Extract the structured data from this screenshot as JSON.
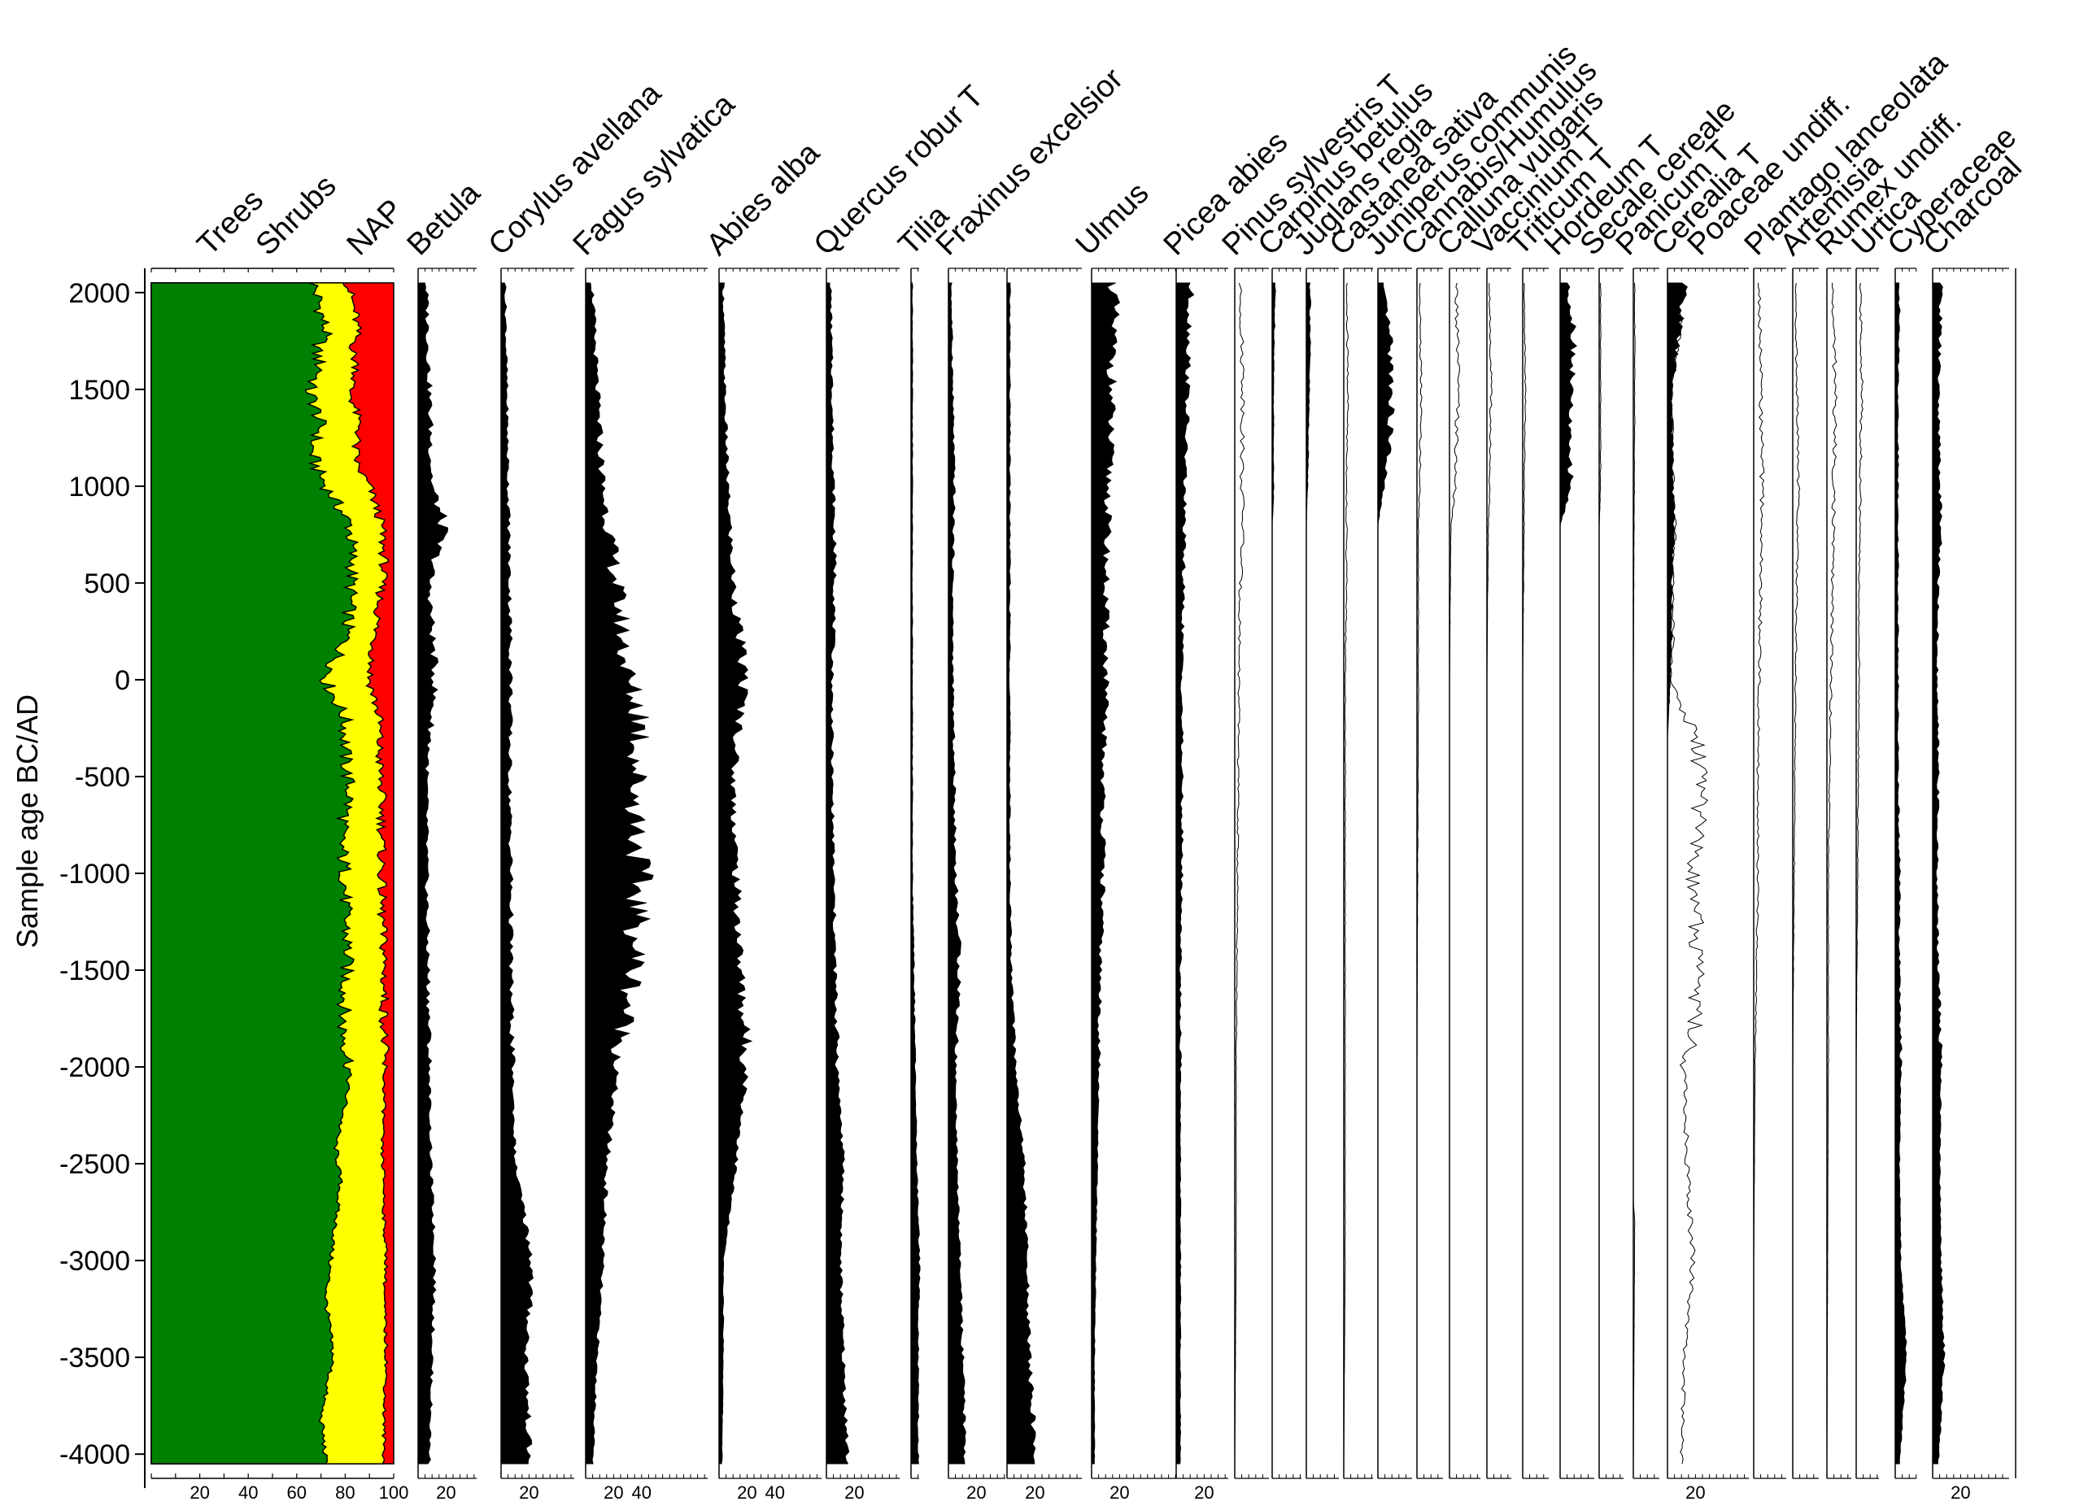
{
  "chart_data": {
    "type": "area",
    "ylabel": "Sample age BC/AD",
    "ylim": [
      -4100,
      2100
    ],
    "yticks": [
      "2000",
      "1500",
      "1000",
      "500",
      "0",
      "-500",
      "-1000",
      "-1500",
      "-2000",
      "-2500",
      "-3000",
      "-3500",
      "-4000"
    ],
    "ytick_values": [
      2000,
      1500,
      1000,
      500,
      0,
      -500,
      -1000,
      -1500,
      -2000,
      -2500,
      -3000,
      -3500,
      -4000
    ],
    "colors": {
      "trees": "#008000",
      "shrubs": "#ffff00",
      "nap": "#ff0000",
      "silhouette": "#000000",
      "line": "#000000"
    },
    "stacked_panel": {
      "series_names": [
        "Trees",
        "Shrubs",
        "NAP"
      ],
      "xlim": [
        0,
        100
      ],
      "xticks": [
        "20",
        "40",
        "60",
        "80",
        "100"
      ],
      "profile_age": [
        -4050,
        -3800,
        -3500,
        -3200,
        -3000,
        -2800,
        -2600,
        -2400,
        -2200,
        -2000,
        -1800,
        -1600,
        -1400,
        -1200,
        -1000,
        -800,
        -600,
        -400,
        -200,
        0,
        200,
        400,
        600,
        800,
        1000,
        1100,
        1200,
        1300,
        1400,
        1500,
        1600,
        1700,
        1800,
        1900,
        2000,
        2100
      ],
      "trees_cumulative": [
        72,
        70,
        75,
        72,
        74,
        76,
        78,
        76,
        80,
        82,
        79,
        80,
        81,
        80,
        80,
        78,
        82,
        80,
        80,
        72,
        80,
        82,
        83,
        82,
        72,
        68,
        66,
        70,
        68,
        65,
        70,
        68,
        72,
        70,
        68,
        66
      ],
      "shrubs_cumulative": [
        96,
        96,
        97,
        96,
        97,
        96,
        96,
        95,
        96,
        96,
        96,
        96,
        96,
        95,
        95,
        95,
        95,
        94,
        94,
        90,
        92,
        94,
        96,
        95,
        90,
        85,
        84,
        86,
        84,
        82,
        85,
        83,
        85,
        84,
        82,
        80
      ]
    },
    "taxa": [
      {
        "name": "Betula",
        "xticks": [
          "20"
        ],
        "max": 30,
        "kind": "silhouette",
        "profile_age": [
          -4050,
          -3500,
          -3000,
          -2500,
          -2000,
          -1500,
          -1000,
          -500,
          0,
          500,
          800,
          1000,
          1500,
          2000,
          2100
        ],
        "profile_val": [
          8,
          10,
          12,
          9,
          8,
          7,
          6,
          6,
          12,
          8,
          18,
          10,
          8,
          6,
          5
        ]
      },
      {
        "name": "Corylus avellana",
        "xticks": [
          "20"
        ],
        "max": 30,
        "kind": "silhouette",
        "profile_age": [
          -4050,
          -3500,
          -3000,
          -2500,
          -2000,
          -1500,
          -1000,
          -500,
          0,
          500,
          1000,
          1500,
          2000,
          2100
        ],
        "profile_val": [
          20,
          18,
          22,
          10,
          8,
          7,
          7,
          6,
          7,
          6,
          5,
          4,
          3,
          3
        ]
      },
      {
        "name": "Fagus sylvatica",
        "xticks": [
          "20",
          "40"
        ],
        "max": 50,
        "kind": "silhouette",
        "profile_age": [
          -4050,
          -3500,
          -3000,
          -2500,
          -2000,
          -1500,
          -1000,
          -500,
          -200,
          0,
          500,
          1000,
          1500,
          2000,
          2100
        ],
        "profile_val": [
          5,
          8,
          12,
          15,
          22,
          35,
          38,
          36,
          40,
          30,
          22,
          12,
          8,
          5,
          4
        ]
      },
      {
        "name": "Abies alba",
        "xticks": [
          "20",
          "40"
        ],
        "max": 40,
        "kind": "silhouette",
        "profile_age": [
          -4050,
          -3500,
          -3000,
          -2500,
          -2000,
          -1500,
          -1000,
          -500,
          0,
          500,
          1000,
          1500,
          2000,
          2100
        ],
        "profile_val": [
          2,
          3,
          3,
          12,
          20,
          15,
          12,
          10,
          18,
          10,
          6,
          4,
          3,
          3
        ]
      },
      {
        "name": "Quercus robur T",
        "xticks": [
          "20"
        ],
        "max": 30,
        "kind": "silhouette",
        "profile_age": [
          -4050,
          -3500,
          -3000,
          -2500,
          -2000,
          -1500,
          -1000,
          -500,
          0,
          500,
          1000,
          1500,
          2000,
          2100
        ],
        "profile_val": [
          15,
          12,
          10,
          12,
          8,
          6,
          5,
          4,
          4,
          6,
          5,
          4,
          3,
          3
        ]
      },
      {
        "name": "Tilia",
        "xticks": [],
        "max": 20,
        "kind": "silhouette",
        "profile_age": [
          -4050,
          -3500,
          -3000,
          -2500,
          -2000,
          -1500,
          -1000,
          -500,
          0,
          500,
          1000,
          1500,
          2000,
          2100
        ],
        "profile_val": [
          5,
          5,
          6,
          4,
          3,
          2,
          1,
          1,
          1,
          1,
          1,
          1,
          1,
          1
        ]
      },
      {
        "name": "Fraxinus excelsior",
        "xticks": [
          "20"
        ],
        "max": 30,
        "kind": "silhouette",
        "profile_age": [
          -4050,
          -3500,
          -3000,
          -2500,
          -2000,
          -1500,
          -1000,
          -500,
          0,
          500,
          1000,
          1500,
          2000,
          2100
        ],
        "profile_val": [
          12,
          10,
          8,
          6,
          5,
          8,
          5,
          4,
          3,
          3,
          4,
          3,
          2,
          2
        ]
      },
      {
        "name": "Ulmus",
        "xticks": [
          "20"
        ],
        "max": 30,
        "kind": "silhouette",
        "profile_age": [
          -4050,
          -3500,
          -3000,
          -2500,
          -2000,
          -1500,
          -1000,
          -500,
          0,
          500,
          1000,
          1500,
          2000,
          2100
        ],
        "profile_val": [
          20,
          16,
          14,
          12,
          6,
          3,
          2,
          2,
          2,
          2,
          2,
          2,
          2,
          2
        ]
      },
      {
        "name": "Picea abies",
        "xticks": [
          "20"
        ],
        "max": 40,
        "kind": "silhouette",
        "profile_age": [
          -4050,
          -3500,
          -3000,
          -2500,
          -2000,
          -1500,
          -1000,
          -500,
          0,
          500,
          1000,
          1500,
          2000,
          2100
        ],
        "profile_val": [
          2,
          2,
          3,
          4,
          5,
          6,
          8,
          8,
          10,
          10,
          12,
          14,
          16,
          14
        ]
      },
      {
        "name": "Pinus sylvestris T",
        "xticks": [
          "20"
        ],
        "max": 20,
        "kind": "silhouette",
        "profile_age": [
          -4050,
          -3500,
          -3000,
          -2500,
          -2000,
          -1500,
          -1000,
          -500,
          0,
          500,
          1000,
          1500,
          2000,
          2100
        ],
        "profile_val": [
          3,
          3,
          3,
          3,
          3,
          3,
          4,
          4,
          4,
          5,
          6,
          8,
          10,
          10
        ]
      },
      {
        "name": "Carpinus betulus",
        "xticks": [],
        "max": 20,
        "kind": "line",
        "profile_age": [
          -4050,
          -3000,
          -2000,
          -1000,
          0,
          500,
          800,
          1000,
          1500,
          2000,
          2100
        ],
        "profile_val": [
          0,
          1,
          1,
          2,
          3,
          4,
          6,
          5,
          6,
          4,
          3
        ]
      },
      {
        "name": "Juglans regia",
        "xticks": [],
        "max": 20,
        "kind": "silhouette",
        "profile_age": [
          -4050,
          800,
          900,
          1500,
          2000,
          2100
        ],
        "profile_val": [
          0,
          0,
          1,
          1,
          2,
          2
        ]
      },
      {
        "name": "Castanea sativa",
        "xticks": [],
        "max": 20,
        "kind": "silhouette",
        "profile_age": [
          -4050,
          800,
          1000,
          1500,
          2000,
          2100
        ],
        "profile_val": [
          0,
          0,
          1,
          2,
          3,
          2
        ]
      },
      {
        "name": "Juniperus communis",
        "xticks": [],
        "max": 20,
        "kind": "line",
        "profile_age": [
          -4050,
          -3000,
          -2000,
          -1000,
          0,
          500,
          1000,
          1500,
          2000,
          2100
        ],
        "profile_val": [
          0,
          1,
          1,
          1,
          1,
          2,
          2,
          3,
          2,
          2
        ]
      },
      {
        "name": "Cannabis/Humulus",
        "xticks": [],
        "max": 20,
        "kind": "silhouette",
        "profile_age": [
          -4050,
          800,
          1000,
          1200,
          1500,
          1800,
          2000,
          2100
        ],
        "profile_val": [
          0,
          0,
          4,
          8,
          10,
          8,
          4,
          3
        ]
      },
      {
        "name": "Calluna vulgaris",
        "xticks": [],
        "max": 20,
        "kind": "line",
        "profile_age": [
          -4050,
          -2000,
          0,
          800,
          1000,
          1500,
          2000,
          2100
        ],
        "profile_val": [
          0,
          0,
          1,
          1,
          2,
          3,
          2,
          2
        ]
      },
      {
        "name": "Vaccinium T",
        "xticks": [],
        "max": 20,
        "kind": "line",
        "profile_age": [
          -4050,
          -2000,
          0,
          800,
          1000,
          1500,
          2000,
          2100
        ],
        "profile_val": [
          0,
          0,
          0,
          1,
          4,
          6,
          5,
          4
        ]
      },
      {
        "name": "Triticum T",
        "xticks": [],
        "max": 20,
        "kind": "line",
        "profile_age": [
          -4050,
          -1000,
          0,
          800,
          1000,
          1500,
          2000,
          2100
        ],
        "profile_val": [
          0,
          0,
          0,
          1,
          2,
          3,
          2,
          2
        ]
      },
      {
        "name": "Hordeum T",
        "xticks": [],
        "max": 20,
        "kind": "line",
        "profile_age": [
          -4050,
          0,
          800,
          1000,
          1500,
          2000,
          2100
        ],
        "profile_val": [
          0,
          0,
          1,
          1,
          2,
          1,
          1
        ]
      },
      {
        "name": "Secale cereale",
        "xticks": [],
        "max": 20,
        "kind": "silhouette",
        "profile_age": [
          -4050,
          800,
          1000,
          1200,
          1500,
          1800,
          2000,
          2100
        ],
        "profile_val": [
          0,
          0,
          8,
          6,
          8,
          10,
          6,
          5
        ]
      },
      {
        "name": "Panicum T",
        "xticks": [],
        "max": 20,
        "kind": "line",
        "profile_age": [
          -4050,
          800,
          1000,
          1500,
          2000,
          2100
        ],
        "profile_val": [
          0,
          0,
          1,
          1,
          1,
          1
        ]
      },
      {
        "name": "Cerealia T",
        "xticks": [],
        "max": 20,
        "kind": "line",
        "profile_age": [
          -4050,
          -2800,
          -2700,
          0,
          1500,
          2000,
          2100
        ],
        "profile_val": [
          0,
          1,
          0,
          0,
          1,
          1,
          1
        ]
      },
      {
        "name": "Poaceae undiff.",
        "xticks": [
          "20"
        ],
        "max": 40,
        "kind": "line_silhouette",
        "profile_age": [
          -4050,
          -3500,
          -3000,
          -2500,
          -2000,
          -1800,
          -1500,
          -1200,
          -1000,
          -800,
          -500,
          -300,
          0,
          200,
          500,
          800,
          1000,
          1500,
          2000,
          2100
        ],
        "profile_val": [
          10,
          12,
          18,
          14,
          12,
          20,
          22,
          20,
          18,
          22,
          24,
          20,
          2,
          4,
          4,
          5,
          4,
          3,
          12,
          10
        ],
        "silhouette_val": [
          0,
          0,
          0,
          0,
          0,
          0,
          0,
          0,
          0,
          0,
          0,
          0,
          2,
          3,
          3,
          5,
          4,
          3,
          12,
          10
        ]
      },
      {
        "name": "Plantago lanceolata",
        "xticks": [],
        "max": 20,
        "kind": "line",
        "profile_age": [
          -4050,
          -3000,
          -2000,
          -1500,
          -1000,
          -500,
          0,
          500,
          1000,
          1500,
          2000,
          2100
        ],
        "profile_val": [
          0,
          0,
          1,
          2,
          3,
          3,
          4,
          5,
          6,
          5,
          4,
          3
        ]
      },
      {
        "name": "Artemisia",
        "xticks": [],
        "max": 20,
        "kind": "line",
        "profile_age": [
          -4050,
          -2000,
          -1000,
          0,
          500,
          1000,
          1500,
          2000,
          2100
        ],
        "profile_val": [
          0,
          0,
          1,
          2,
          3,
          4,
          3,
          2,
          2
        ]
      },
      {
        "name": "Rumex undiff.",
        "xticks": [],
        "max": 20,
        "kind": "line",
        "profile_age": [
          -4050,
          -2000,
          -1000,
          0,
          500,
          1000,
          1500,
          2000,
          2100
        ],
        "profile_val": [
          0,
          1,
          1,
          3,
          4,
          5,
          6,
          4,
          3
        ]
      },
      {
        "name": "Urtica",
        "xticks": [],
        "max": 20,
        "kind": "line",
        "profile_age": [
          -4050,
          -2000,
          -1000,
          0,
          500,
          1000,
          1500,
          2000,
          2100
        ],
        "profile_val": [
          0,
          0,
          1,
          2,
          2,
          3,
          4,
          3,
          2
        ]
      },
      {
        "name": "Cyperaceae",
        "xticks": [],
        "max": 20,
        "kind": "silhouette_line",
        "profile_age": [
          -4050,
          -3500,
          -3000,
          -2500,
          -2000,
          -1500,
          -1000,
          -500,
          0,
          500,
          1000,
          1500,
          2000,
          2100
        ],
        "profile_val": [
          3,
          8,
          4,
          3,
          4,
          3,
          3,
          2,
          2,
          2,
          2,
          2,
          3,
          3
        ]
      },
      {
        "name": "Charcoal",
        "xticks": [
          "20"
        ],
        "max": 30,
        "kind": "silhouette",
        "profile_age": [
          -4050,
          -3500,
          -3000,
          -2500,
          -2000,
          -1500,
          -1000,
          -500,
          0,
          500,
          800,
          1000,
          1500,
          2000,
          2100
        ],
        "profile_val": [
          4,
          8,
          6,
          5,
          6,
          4,
          3,
          4,
          3,
          4,
          6,
          5,
          4,
          6,
          5
        ]
      }
    ]
  }
}
